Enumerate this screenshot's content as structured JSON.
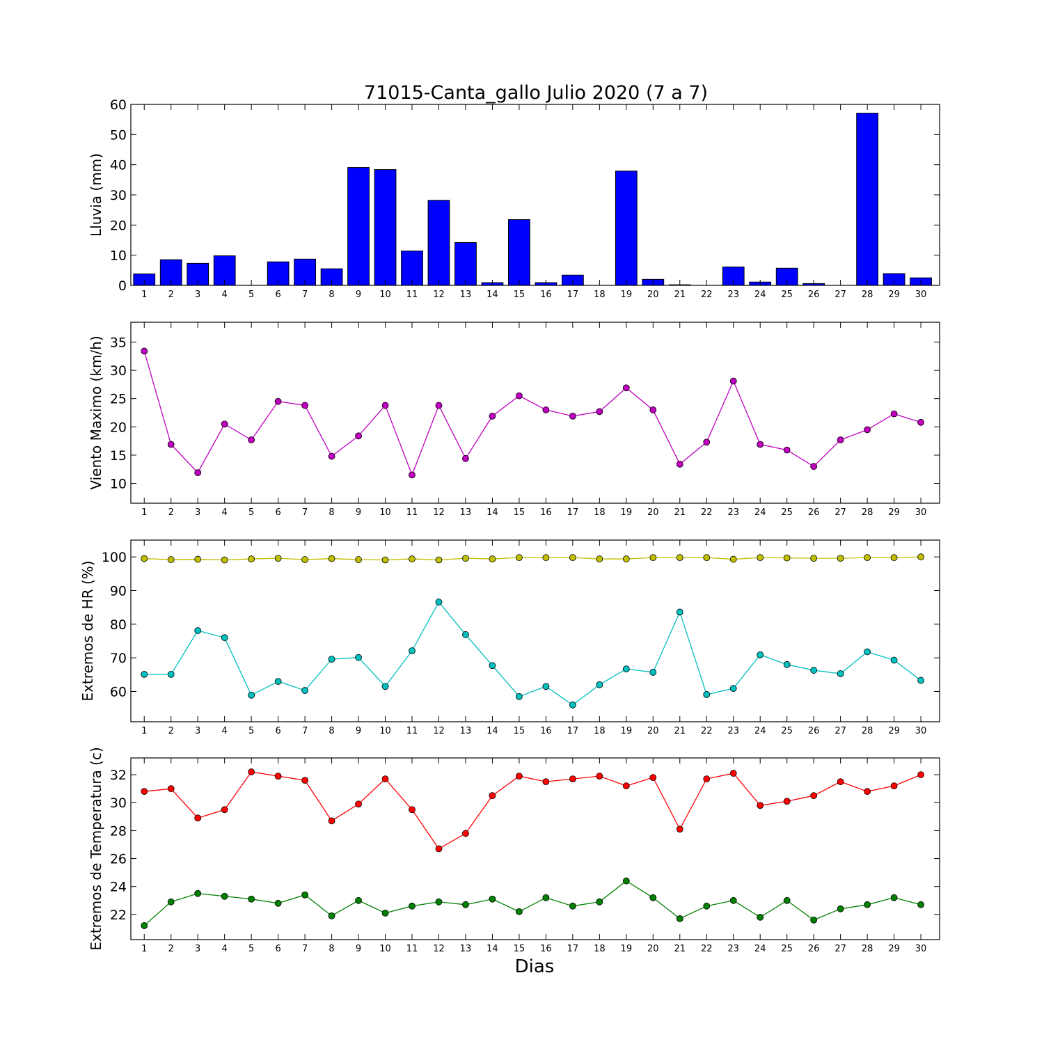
{
  "title": "71015-Canta_gallo Julio 2020  (7 a 7)",
  "xlabel": "Dias",
  "chart_data": [
    {
      "type": "bar",
      "ylabel": "Lluvia (mm)",
      "ylim": [
        0,
        60
      ],
      "yticks": [
        0,
        10,
        20,
        30,
        40,
        50,
        60
      ],
      "categories": [
        "1",
        "2",
        "3",
        "4",
        "5",
        "6",
        "7",
        "8",
        "9",
        "10",
        "11",
        "12",
        "13",
        "14",
        "15",
        "16",
        "17",
        "18",
        "19",
        "20",
        "21",
        "22",
        "23",
        "24",
        "25",
        "26",
        "27",
        "28",
        "29",
        "30"
      ],
      "series": [
        {
          "color": "#0000ff",
          "values": [
            3.8,
            8.5,
            7.3,
            9.8,
            0,
            7.8,
            8.7,
            5.5,
            39.1,
            38.4,
            11.4,
            28.2,
            14.2,
            0.9,
            21.8,
            0.9,
            3.4,
            0,
            37.9,
            2.0,
            0.2,
            0,
            6.1,
            1.1,
            5.7,
            0.6,
            0,
            57.1,
            3.9,
            2.5
          ]
        }
      ]
    },
    {
      "type": "line",
      "ylabel": "Viento Maximo (km/h)",
      "ylim": [
        6.5,
        38.5
      ],
      "yticks": [
        10,
        15,
        20,
        25,
        30,
        35
      ],
      "categories": [
        "1",
        "2",
        "3",
        "4",
        "5",
        "6",
        "7",
        "8",
        "9",
        "10",
        "11",
        "12",
        "13",
        "14",
        "15",
        "16",
        "17",
        "18",
        "19",
        "20",
        "21",
        "22",
        "23",
        "24",
        "25",
        "26",
        "27",
        "28",
        "29",
        "30"
      ],
      "series": [
        {
          "color": "#bf00bf",
          "values": [
            33.4,
            16.9,
            11.9,
            20.5,
            17.7,
            24.5,
            23.8,
            14.8,
            18.4,
            23.8,
            11.5,
            23.8,
            14.4,
            21.9,
            25.5,
            23.0,
            21.9,
            22.7,
            26.9,
            23.0,
            13.4,
            17.3,
            28.1,
            16.9,
            15.9,
            13.0,
            17.7,
            19.5,
            22.3,
            20.8
          ]
        }
      ]
    },
    {
      "type": "line",
      "ylabel": "Extremos de HR (%)",
      "ylim": [
        51,
        105
      ],
      "yticks": [
        60,
        70,
        80,
        90,
        100
      ],
      "categories": [
        "1",
        "2",
        "3",
        "4",
        "5",
        "6",
        "7",
        "8",
        "9",
        "10",
        "11",
        "12",
        "13",
        "14",
        "15",
        "16",
        "17",
        "18",
        "19",
        "20",
        "21",
        "22",
        "23",
        "24",
        "25",
        "26",
        "27",
        "28",
        "29",
        "30"
      ],
      "series": [
        {
          "color": "#bfbf00",
          "values": [
            99.5,
            99.2,
            99.3,
            99.1,
            99.4,
            99.6,
            99.2,
            99.5,
            99.2,
            99.1,
            99.4,
            99.1,
            99.6,
            99.4,
            99.8,
            99.8,
            99.8,
            99.4,
            99.4,
            99.8,
            99.8,
            99.8,
            99.3,
            99.8,
            99.7,
            99.6,
            99.6,
            99.8,
            99.8,
            100.0
          ]
        },
        {
          "color": "#00bfbf",
          "values": [
            65.1,
            65.1,
            78.1,
            76.0,
            58.9,
            63.0,
            60.3,
            69.6,
            70.1,
            61.5,
            72.1,
            86.6,
            76.9,
            67.7,
            58.5,
            61.5,
            56.0,
            62.0,
            66.7,
            65.7,
            83.6,
            59.1,
            60.9,
            70.9,
            68.0,
            66.3,
            65.3,
            71.8,
            69.3,
            63.3
          ]
        }
      ]
    },
    {
      "type": "line",
      "ylabel": "Extremos de Temperatura (c)",
      "ylim": [
        20.2,
        33.2
      ],
      "yticks": [
        22,
        24,
        26,
        28,
        30,
        32
      ],
      "categories": [
        "1",
        "2",
        "3",
        "4",
        "5",
        "6",
        "7",
        "8",
        "9",
        "10",
        "11",
        "12",
        "13",
        "14",
        "15",
        "16",
        "17",
        "18",
        "19",
        "20",
        "21",
        "22",
        "23",
        "24",
        "25",
        "26",
        "27",
        "28",
        "29",
        "30"
      ],
      "series": [
        {
          "color": "#ff0000",
          "values": [
            30.8,
            31.0,
            28.9,
            29.5,
            32.2,
            31.9,
            31.6,
            28.7,
            29.9,
            31.7,
            29.5,
            26.7,
            27.8,
            30.5,
            31.9,
            31.5,
            31.7,
            31.9,
            31.2,
            31.8,
            28.1,
            31.7,
            32.1,
            29.8,
            30.1,
            30.5,
            31.5,
            30.8,
            31.2,
            32.0
          ]
        },
        {
          "color": "#008000",
          "values": [
            21.2,
            22.9,
            23.5,
            23.3,
            23.1,
            22.8,
            23.4,
            21.9,
            23.0,
            22.1,
            22.6,
            22.9,
            22.7,
            23.1,
            22.2,
            23.2,
            22.6,
            22.9,
            24.4,
            23.2,
            21.7,
            22.6,
            23.0,
            21.8,
            23.0,
            21.6,
            22.4,
            22.7,
            23.2,
            22.7
          ]
        }
      ]
    }
  ]
}
